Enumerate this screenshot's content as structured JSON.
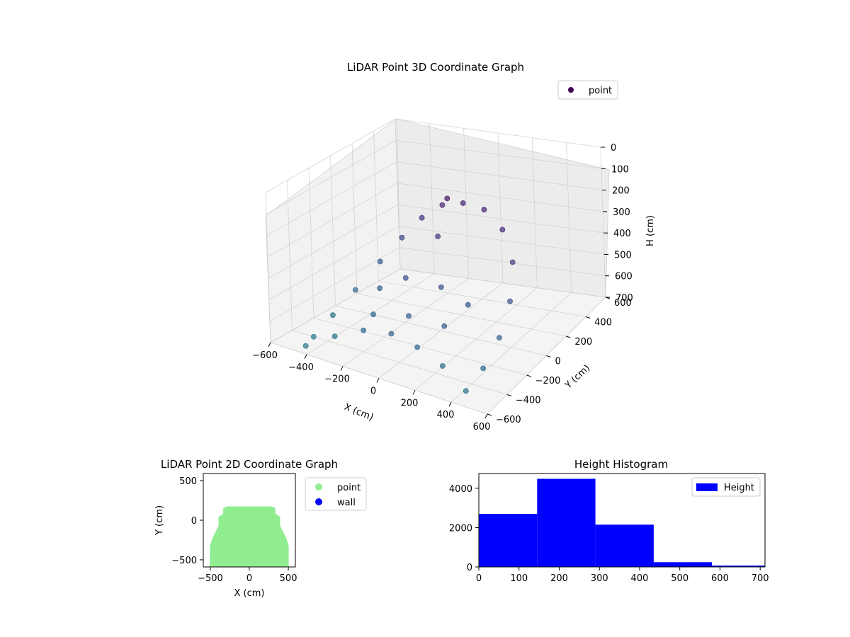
{
  "figure": {
    "background": "#ffffff"
  },
  "chart_data": [
    {
      "type": "scatter",
      "projection": "3d",
      "title": "LiDAR Point 3D Coordinate Graph",
      "xlabel": "X (cm)",
      "ylabel": "Y (cm)",
      "zlabel": "H (cm)",
      "xlim": [
        -600,
        600
      ],
      "ylim": [
        -600,
        600
      ],
      "zlim": [
        0,
        700
      ],
      "z_inverted": true,
      "xticks": [
        -600,
        -400,
        -200,
        0,
        200,
        400,
        600
      ],
      "yticks": [
        -600,
        -400,
        -200,
        0,
        200,
        400,
        600
      ],
      "zticks": [
        0,
        100,
        200,
        300,
        400,
        500,
        600,
        700
      ],
      "xtick_labels": [
        "−600",
        "−400",
        "−200",
        "0",
        "200",
        "400",
        "600"
      ],
      "ytick_labels": [
        "−600",
        "−400",
        "−200",
        "0",
        "200",
        "400",
        "600"
      ],
      "ztick_labels": [
        "0",
        "100",
        "200",
        "300",
        "400",
        "500",
        "600",
        "700"
      ],
      "colormap": "viridis",
      "grid": true,
      "legend": {
        "position": "top-right",
        "entries": [
          {
            "label": "point",
            "color": "#440154"
          }
        ]
      },
      "series": [
        {
          "name": "point",
          "shape": "dome",
          "x_range": [
            -480,
            480
          ],
          "y_range": [
            -560,
            150
          ],
          "z_range": [
            0,
            700
          ],
          "points": [
            {
              "x": -480,
              "y": -400,
              "z": 700
            },
            {
              "x": -460,
              "y": -250,
              "z": 640
            },
            {
              "x": -420,
              "y": -100,
              "z": 560
            },
            {
              "x": -360,
              "y": 40,
              "z": 460
            },
            {
              "x": -280,
              "y": 120,
              "z": 360
            },
            {
              "x": -180,
              "y": 150,
              "z": 260
            },
            {
              "x": -60,
              "y": 150,
              "z": 180
            },
            {
              "x": 60,
              "y": 150,
              "z": 150
            },
            {
              "x": 180,
              "y": 150,
              "z": 160
            },
            {
              "x": 300,
              "y": 120,
              "z": 220
            },
            {
              "x": 400,
              "y": 40,
              "z": 320
            },
            {
              "x": 460,
              "y": -100,
              "z": 430
            },
            {
              "x": 480,
              "y": -250,
              "z": 530
            },
            {
              "x": 470,
              "y": -400,
              "z": 610
            },
            {
              "x": 450,
              "y": -540,
              "z": 660
            },
            {
              "x": -440,
              "y": -540,
              "z": 690
            },
            {
              "x": -300,
              "y": -500,
              "z": 620
            },
            {
              "x": -150,
              "y": -480,
              "z": 560
            },
            {
              "x": 0,
              "y": -470,
              "z": 540
            },
            {
              "x": 150,
              "y": -480,
              "z": 560
            },
            {
              "x": 300,
              "y": -500,
              "z": 600
            },
            {
              "x": -200,
              "y": -300,
              "z": 560
            },
            {
              "x": 0,
              "y": -300,
              "z": 520
            },
            {
              "x": 200,
              "y": -300,
              "z": 520
            },
            {
              "x": -100,
              "y": -150,
              "z": 420
            },
            {
              "x": 100,
              "y": -150,
              "z": 420
            },
            {
              "x": 0,
              "y": 0,
              "z": 260
            },
            {
              "x": -250,
              "y": -150,
              "z": 500
            },
            {
              "x": 250,
              "y": -150,
              "z": 470
            },
            {
              "x": 0,
              "y": 100,
              "z": 120
            }
          ]
        }
      ]
    },
    {
      "type": "scatter",
      "title": "LiDAR Point 2D Coordinate Graph",
      "xlabel": "X (cm)",
      "ylabel": "Y (cm)",
      "xlim": [
        -590,
        590
      ],
      "ylim": [
        -590,
        590
      ],
      "xticks": [
        -500,
        0,
        500
      ],
      "yticks": [
        -500,
        0,
        500
      ],
      "xtick_labels": [
        "−500",
        "0",
        "500"
      ],
      "ytick_labels": [
        "−500",
        "0",
        "500"
      ],
      "legend": {
        "position": "outside-right",
        "entries": [
          {
            "label": "point",
            "color": "#90ee90"
          },
          {
            "label": "wall",
            "color": "#0000ff"
          }
        ]
      },
      "series": [
        {
          "name": "point",
          "color": "#90ee90",
          "outline": [
            {
              "x": -500,
              "y": -590
            },
            {
              "x": -500,
              "y": -330
            },
            {
              "x": -470,
              "y": -230
            },
            {
              "x": -430,
              "y": -150
            },
            {
              "x": -390,
              "y": -70
            },
            {
              "x": -390,
              "y": 40
            },
            {
              "x": -330,
              "y": 80
            },
            {
              "x": -330,
              "y": 150
            },
            {
              "x": -280,
              "y": 170
            },
            {
              "x": 280,
              "y": 170
            },
            {
              "x": 330,
              "y": 150
            },
            {
              "x": 330,
              "y": 80
            },
            {
              "x": 390,
              "y": 40
            },
            {
              "x": 390,
              "y": -70
            },
            {
              "x": 430,
              "y": -150
            },
            {
              "x": 470,
              "y": -230
            },
            {
              "x": 500,
              "y": -330
            },
            {
              "x": 500,
              "y": -590
            }
          ]
        },
        {
          "name": "wall",
          "color": "#0000ff",
          "points": []
        }
      ]
    },
    {
      "type": "bar",
      "histogram": true,
      "title": "Height Histogram",
      "xlim": [
        0,
        712
      ],
      "ylim": [
        0,
        4750
      ],
      "xticks": [
        0,
        100,
        200,
        300,
        400,
        500,
        600,
        700
      ],
      "yticks": [
        0,
        2000,
        4000
      ],
      "xtick_labels": [
        "0",
        "100",
        "200",
        "300",
        "400",
        "500",
        "600",
        "700"
      ],
      "ytick_labels": [
        "0",
        "2000",
        "4000"
      ],
      "color": "#0000ff",
      "legend": {
        "position": "top-right",
        "entries": [
          {
            "label": "Height",
            "color": "#0000ff"
          }
        ]
      },
      "bins": [
        {
          "start": 0,
          "end": 145,
          "count": 2700
        },
        {
          "start": 145,
          "end": 290,
          "count": 4480
        },
        {
          "start": 290,
          "end": 435,
          "count": 2150
        },
        {
          "start": 435,
          "end": 580,
          "count": 240
        },
        {
          "start": 580,
          "end": 712,
          "count": 70
        }
      ]
    }
  ]
}
